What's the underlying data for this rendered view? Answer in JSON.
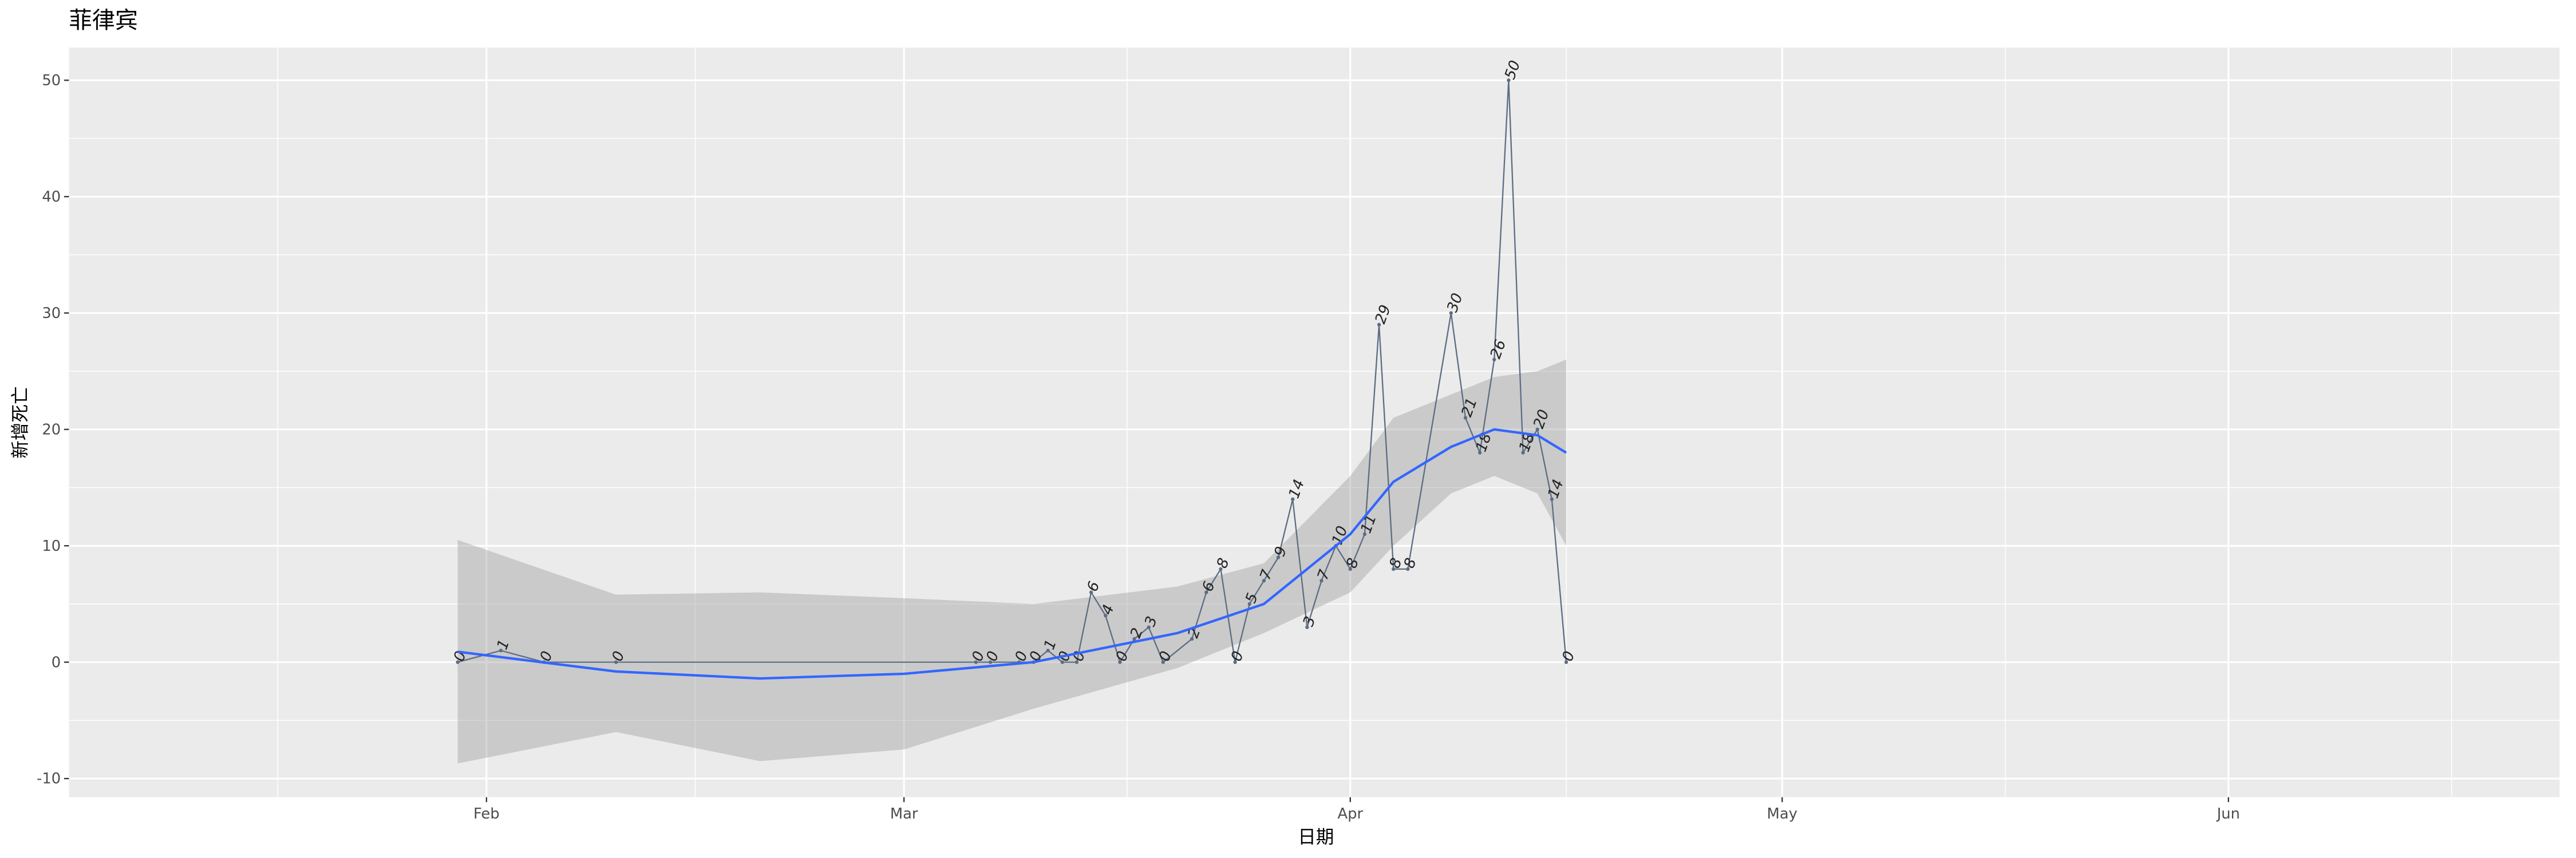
{
  "chart_data": {
    "type": "line",
    "title": "菲律宾",
    "xlabel": "日期",
    "ylabel": "新增死亡",
    "x": [
      "01-30",
      "02-02",
      "02-05",
      "02-10",
      "03-06",
      "03-07",
      "03-09",
      "03-10",
      "03-11",
      "03-12",
      "03-13",
      "03-14",
      "03-15",
      "03-16",
      "03-17",
      "03-18",
      "03-19",
      "03-21",
      "03-22",
      "03-23",
      "03-24",
      "03-25",
      "03-26",
      "03-27",
      "03-28",
      "03-29",
      "03-30",
      "03-31",
      "04-01",
      "04-02",
      "04-03",
      "04-04",
      "04-05",
      "04-08",
      "04-09",
      "04-10",
      "04-11",
      "04-12",
      "04-13",
      "04-14",
      "04-15",
      "04-16"
    ],
    "series": [
      {
        "color": "#5d6d84",
        "values": [
          0,
          1,
          0,
          0,
          0,
          0,
          0,
          0,
          1,
          0,
          0,
          6,
          4,
          0,
          2,
          3,
          0,
          2,
          6,
          8,
          0,
          5,
          7,
          9,
          14,
          3,
          7,
          10,
          8,
          11,
          29,
          8,
          8,
          30,
          21,
          18,
          26,
          50,
          18,
          20,
          14,
          0
        ]
      }
    ],
    "smooth": {
      "color": "#3366ff",
      "x": [
        "01-30",
        "02-10",
        "02-20",
        "03-01",
        "03-10",
        "03-20",
        "03-26",
        "04-01",
        "04-04",
        "04-08",
        "04-11",
        "04-14",
        "04-16"
      ],
      "values": [
        0.9,
        -0.8,
        -1.4,
        -1.0,
        0,
        2.5,
        5,
        11,
        15.5,
        18.5,
        20,
        19.5,
        18
      ],
      "lower": [
        -8.7,
        -6,
        -8.5,
        -7.5,
        -4,
        -0.5,
        2.5,
        6,
        10,
        14.5,
        16,
        14.5,
        10
      ],
      "upper": [
        10.5,
        5.8,
        6,
        5.5,
        5,
        6.5,
        8.5,
        16,
        21,
        23,
        24.5,
        25,
        26
      ]
    },
    "xlim": [
      "01-03",
      "06-24"
    ],
    "xticks": [
      {
        "value": "02-01",
        "label": "Feb"
      },
      {
        "value": "03-01",
        "label": "Mar"
      },
      {
        "value": "04-01",
        "label": "Apr"
      },
      {
        "value": "05-01",
        "label": "May"
      },
      {
        "value": "06-01",
        "label": "Jun"
      }
    ],
    "ylim": [
      -11.6,
      52.8
    ],
    "yticks": [
      -10,
      0,
      10,
      20,
      30,
      40,
      50
    ],
    "grid": true
  }
}
